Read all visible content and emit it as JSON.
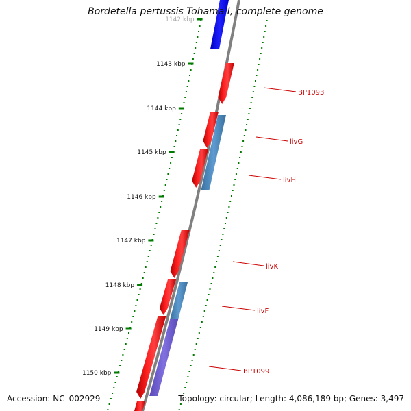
{
  "title": "Bordetella pertussis Tohama I, complete genome",
  "footer": {
    "accession": "Accession: NC_002929",
    "summary": "Topology: circular; Length: 4,086,189 bp; Genes: 3,497"
  },
  "colors": {
    "backbone": "#808080",
    "forward_gene": "#ff0000",
    "reverse_gene": "#0000ff",
    "overlay_gene": "#4682b4",
    "overlay_gene_2": "#6a5acd",
    "gc_dots": "#007a00",
    "label": "#cc0000"
  },
  "chart_data": {
    "type": "genome-map",
    "ticks": [
      {
        "label": "1142 kbp",
        "faded": true
      },
      {
        "label": "1143 kbp"
      },
      {
        "label": "1144 kbp"
      },
      {
        "label": "1145 kbp"
      },
      {
        "label": "1146 kbp"
      },
      {
        "label": "1147 kbp"
      },
      {
        "label": "1148 kbp"
      },
      {
        "label": "1149 kbp"
      },
      {
        "label": "1150 kbp"
      }
    ],
    "gene_labels": [
      "BP1093",
      "livG",
      "livH",
      "livK",
      "livF",
      "BP1099"
    ]
  }
}
